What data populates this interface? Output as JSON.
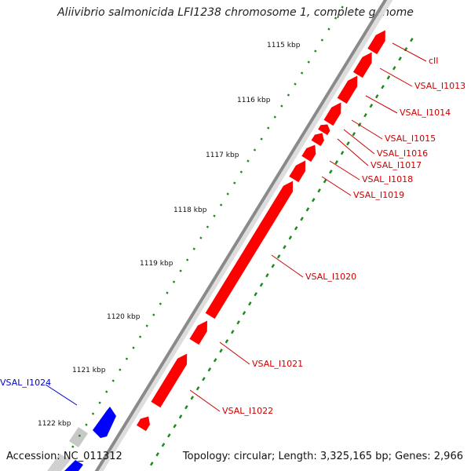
{
  "title": "Aliivibrio salmonicida LFI1238 chromosome 1, complete genome",
  "footer": {
    "accession": "Accession: NC_011312",
    "summary": "Topology: circular; Length: 3,325,165 bp; Genes: 2,966"
  },
  "ticks": [
    "1115 kbp",
    "1116 kbp",
    "1117 kbp",
    "1118 kbp",
    "1119 kbp",
    "1120 kbp",
    "1121 kbp",
    "1122 kbp"
  ],
  "genes": [
    {
      "label": "cII",
      "strand": "reverse",
      "color": "#ff0000"
    },
    {
      "label": "VSAL_I1013",
      "strand": "reverse",
      "color": "#ff0000"
    },
    {
      "label": "VSAL_I1014",
      "strand": "reverse",
      "color": "#ff0000"
    },
    {
      "label": "VSAL_I1015",
      "strand": "reverse",
      "color": "#ff0000"
    },
    {
      "label": "VSAL_I1016",
      "strand": "reverse",
      "color": "#ff0000"
    },
    {
      "label": "VSAL_I1017",
      "strand": "reverse",
      "color": "#ff0000"
    },
    {
      "label": "VSAL_I1018",
      "strand": "reverse",
      "color": "#ff0000"
    },
    {
      "label": "VSAL_I1019",
      "strand": "reverse",
      "color": "#ff0000"
    },
    {
      "label": "VSAL_I1020",
      "strand": "reverse",
      "color": "#ff0000"
    },
    {
      "label": "VSAL_I1021",
      "strand": "reverse",
      "color": "#ff0000"
    },
    {
      "label": "VSAL_I1022",
      "strand": "reverse",
      "color": "#ff0000"
    },
    {
      "label": "VSAL_I1024",
      "strand": "forward",
      "color": "#0000ff"
    }
  ],
  "colors": {
    "backbone": "#8a8a8a",
    "reverse_gene": "#ff0000",
    "forward_gene": "#0000ff",
    "gc_skew_dots": "#1a8a1a",
    "label_red": "#cc0000",
    "label_blue": "#0000cc"
  }
}
